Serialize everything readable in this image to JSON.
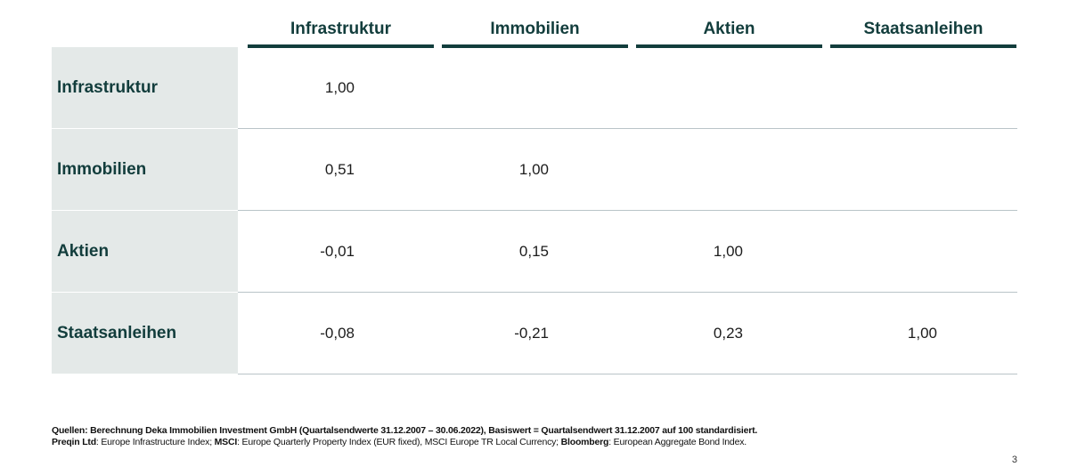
{
  "chart_data": {
    "type": "table",
    "columns": [
      "Infrastruktur",
      "Immobilien",
      "Aktien",
      "Staatsanleihen"
    ],
    "rows": [
      {
        "label": "Infrastruktur",
        "values": [
          "1,00",
          "",
          "",
          ""
        ]
      },
      {
        "label": "Immobilien",
        "values": [
          "0,51",
          "1,00",
          "",
          ""
        ]
      },
      {
        "label": "Aktien",
        "values": [
          "-0,01",
          "0,15",
          "1,00",
          ""
        ]
      },
      {
        "label": "Staatsanleihen",
        "values": [
          "-0,08",
          "-0,21",
          "0,23",
          "1,00"
        ]
      }
    ]
  },
  "footnote": {
    "line1": "Quellen: Berechnung Deka Immobilien Investment GmbH (Quartalsendwerte 31.12.2007 – 30.06.2022), Basiswert = Quartalsendwert 31.12.2007 auf 100 standardisiert.",
    "line2_parts": [
      {
        "bold": true,
        "text": "Preqin Ltd"
      },
      {
        "bold": false,
        "text": ": Europe Infrastructure Index; "
      },
      {
        "bold": true,
        "text": "MSCI"
      },
      {
        "bold": false,
        "text": ": Europe Quarterly Property Index (EUR fixed), MSCI Europe TR Local Currency; "
      },
      {
        "bold": true,
        "text": "Bloomberg"
      },
      {
        "bold": false,
        "text": ": European Aggregate Bond Index."
      }
    ]
  },
  "page_number": "3",
  "colors": {
    "header_text": "#123d3c",
    "header_rule": "#123d3c",
    "label_bg": "#e4e9e8",
    "row_rule": "#b9c4c8"
  }
}
